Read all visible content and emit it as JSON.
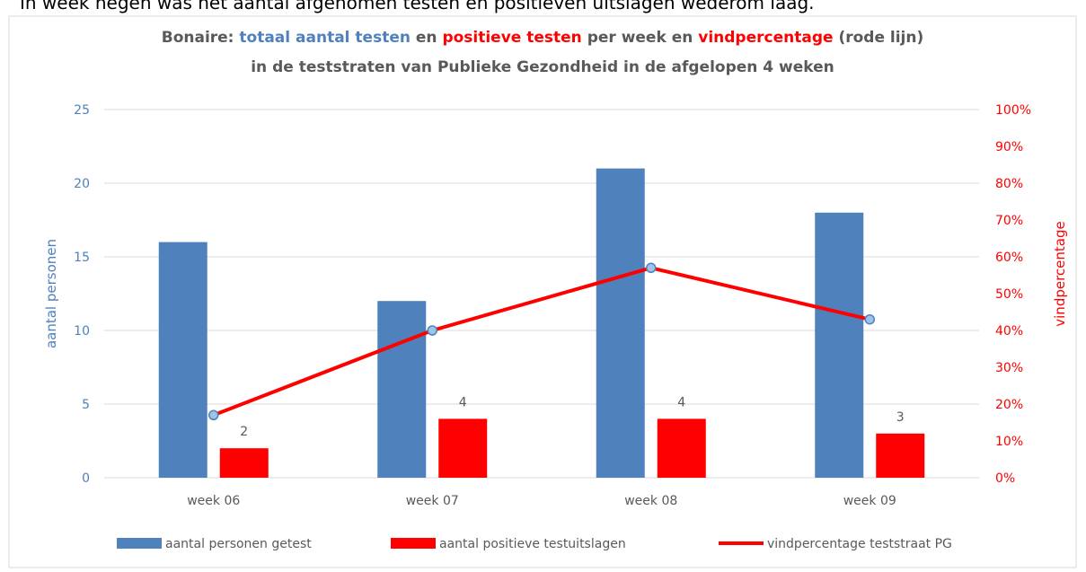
{
  "intro_text": "In week negen was het aantal afgenomen testen en positieven uitslagen wederom laag.",
  "chart_data": {
    "type": "bar+line",
    "title_parts": [
      {
        "text": "Bonaire: ",
        "color": "#595959"
      },
      {
        "text": "totaal aantal testen",
        "color": "#4f81bd"
      },
      {
        "text": " en ",
        "color": "#595959"
      },
      {
        "text": "positieve testen",
        "color": "#ff0000"
      },
      {
        "text": " per week en ",
        "color": "#595959"
      },
      {
        "text": "vindpercentage",
        "color": "#ff0000"
      },
      {
        "text": " (rode lijn)",
        "color": "#595959"
      }
    ],
    "title_line2": "in de teststraten van Publieke Gezondheid in de afgelopen 4 weken",
    "categories": [
      "week 06",
      "week 07",
      "week 08",
      "week 09"
    ],
    "series": [
      {
        "name": "aantal personen getest",
        "type": "bar",
        "color": "#4f81bd",
        "values": [
          16,
          12,
          21,
          18
        ]
      },
      {
        "name": "aantal positieve testuitslagen",
        "type": "bar",
        "color": "#ff0000",
        "values": [
          2,
          4,
          4,
          3
        ],
        "data_labels": true
      },
      {
        "name": "vindpercentage teststraat PG",
        "type": "line",
        "axis": "y2",
        "color": "#ff0000",
        "values": [
          17,
          40,
          57,
          43
        ]
      }
    ],
    "ylabel": "aantal personen",
    "y2label": "vindpercentage",
    "ylim": [
      0,
      25
    ],
    "yticks": [
      0,
      5,
      10,
      15,
      20,
      25
    ],
    "y2lim": [
      0,
      100
    ],
    "y2ticks": [
      {
        "value": 0,
        "label": "0%"
      },
      {
        "value": 10,
        "label": "10%"
      },
      {
        "value": 20,
        "label": "20%"
      },
      {
        "value": 30,
        "label": "30%"
      },
      {
        "value": 40,
        "label": "40%"
      },
      {
        "value": 50,
        "label": "50%"
      },
      {
        "value": 60,
        "label": "60%"
      },
      {
        "value": 70,
        "label": "70%"
      },
      {
        "value": 80,
        "label": "80%"
      },
      {
        "value": 90,
        "label": "90%"
      },
      {
        "value": 100,
        "label": "100%"
      }
    ],
    "ytick_color": "#4f81bd",
    "y2tick_color": "#ff0000",
    "grid": true,
    "legend": "bottom"
  }
}
